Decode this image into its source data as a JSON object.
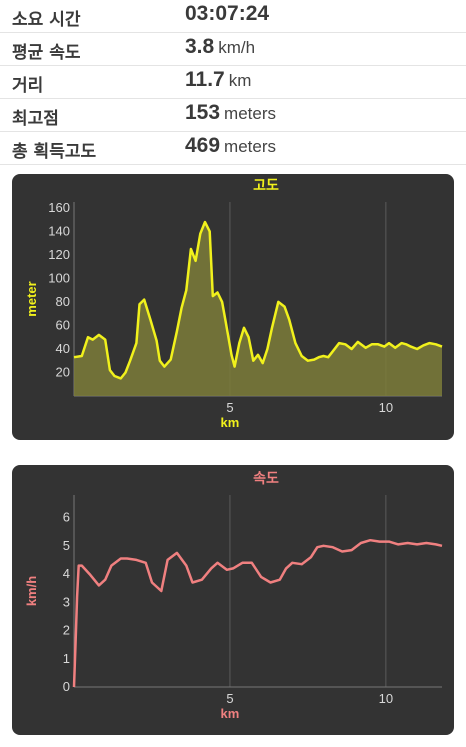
{
  "stats": [
    {
      "label": "소요 시간",
      "value": "03:07:24",
      "unit": ""
    },
    {
      "label": "평균 속도",
      "value": "3.8",
      "unit": "km/h"
    },
    {
      "label": "거리",
      "value": "11.7",
      "unit": "km"
    },
    {
      "label": "최고점",
      "value": "153",
      "unit": "meters"
    },
    {
      "label": "총 획득고도",
      "value": "469",
      "unit": "meters"
    }
  ],
  "colors": {
    "card_bg": "#333333",
    "altitude_line": "#f1f11c",
    "altitude_fill": "#7d7d3a",
    "speed_line": "#f08080"
  },
  "chart_data": [
    {
      "type": "area",
      "title": "고도",
      "xlabel": "km",
      "ylabel": "meter",
      "xlim": [
        0,
        11.8
      ],
      "ylim": [
        0,
        165
      ],
      "xticks": [
        5,
        10
      ],
      "xticklabels": [
        "5",
        "10"
      ],
      "yticks": [
        20,
        40,
        60,
        80,
        100,
        120,
        140,
        160
      ],
      "yticklabels": [
        "20",
        "40",
        "60",
        "80",
        "100",
        "120",
        "140",
        "160"
      ],
      "grid": "vertical",
      "x": [
        0,
        0.25,
        0.45,
        0.6,
        0.8,
        1.0,
        1.15,
        1.3,
        1.5,
        1.65,
        1.8,
        2.0,
        2.1,
        2.25,
        2.45,
        2.65,
        2.75,
        2.9,
        3.1,
        3.3,
        3.45,
        3.6,
        3.75,
        3.9,
        4.05,
        4.2,
        4.35,
        4.45,
        4.6,
        4.75,
        4.85,
        4.95,
        5.05,
        5.15,
        5.3,
        5.45,
        5.6,
        5.75,
        5.9,
        6.05,
        6.2,
        6.35,
        6.55,
        6.75,
        6.9,
        7.1,
        7.3,
        7.5,
        7.7,
        7.85,
        8.0,
        8.15,
        8.3,
        8.5,
        8.7,
        8.9,
        9.1,
        9.35,
        9.55,
        9.75,
        9.95,
        10.1,
        10.3,
        10.5,
        10.65,
        10.8,
        11.0,
        11.2,
        11.4,
        11.6,
        11.8
      ],
      "y": [
        33,
        34,
        50,
        48,
        52,
        48,
        22,
        17,
        15,
        20,
        30,
        45,
        78,
        82,
        65,
        47,
        30,
        25,
        31,
        55,
        75,
        90,
        125,
        115,
        138,
        148,
        140,
        85,
        88,
        80,
        65,
        50,
        35,
        25,
        45,
        58,
        50,
        30,
        35,
        28,
        40,
        58,
        80,
        76,
        65,
        45,
        34,
        30,
        31,
        33,
        34,
        33,
        38,
        45,
        44,
        40,
        46,
        41,
        44,
        44,
        42,
        45,
        41,
        45,
        44,
        42,
        40,
        43,
        45,
        44,
        42
      ]
    },
    {
      "type": "line",
      "title": "속도",
      "xlabel": "km",
      "ylabel": "km/h",
      "xlim": [
        0,
        11.8
      ],
      "ylim": [
        0,
        6.8
      ],
      "xticks": [
        5,
        10
      ],
      "xticklabels": [
        "5",
        "10"
      ],
      "yticks": [
        0,
        1,
        2,
        3,
        4,
        5,
        6
      ],
      "yticklabels": [
        "0",
        "1",
        "2",
        "3",
        "4",
        "5",
        "6"
      ],
      "grid": "vertical",
      "x": [
        0,
        0.05,
        0.1,
        0.15,
        0.25,
        0.5,
        0.8,
        1.0,
        1.2,
        1.5,
        1.7,
        2.0,
        2.3,
        2.5,
        2.8,
        3.0,
        3.3,
        3.6,
        3.8,
        4.1,
        4.4,
        4.6,
        4.9,
        5.1,
        5.4,
        5.7,
        6.0,
        6.3,
        6.6,
        6.8,
        7.0,
        7.3,
        7.6,
        7.8,
        8.0,
        8.3,
        8.6,
        8.9,
        9.2,
        9.5,
        9.8,
        10.1,
        10.4,
        10.7,
        11.0,
        11.3,
        11.6,
        11.8
      ],
      "y": [
        0,
        1.6,
        3.2,
        4.3,
        4.3,
        4.0,
        3.6,
        3.8,
        4.3,
        4.55,
        4.55,
        4.5,
        4.4,
        3.7,
        3.4,
        4.5,
        4.75,
        4.3,
        3.7,
        3.8,
        4.2,
        4.4,
        4.15,
        4.2,
        4.4,
        4.4,
        3.9,
        3.7,
        3.8,
        4.2,
        4.4,
        4.35,
        4.6,
        4.95,
        5.0,
        4.95,
        4.8,
        4.85,
        5.1,
        5.2,
        5.15,
        5.15,
        5.05,
        5.1,
        5.05,
        5.1,
        5.05,
        5.0
      ]
    }
  ]
}
